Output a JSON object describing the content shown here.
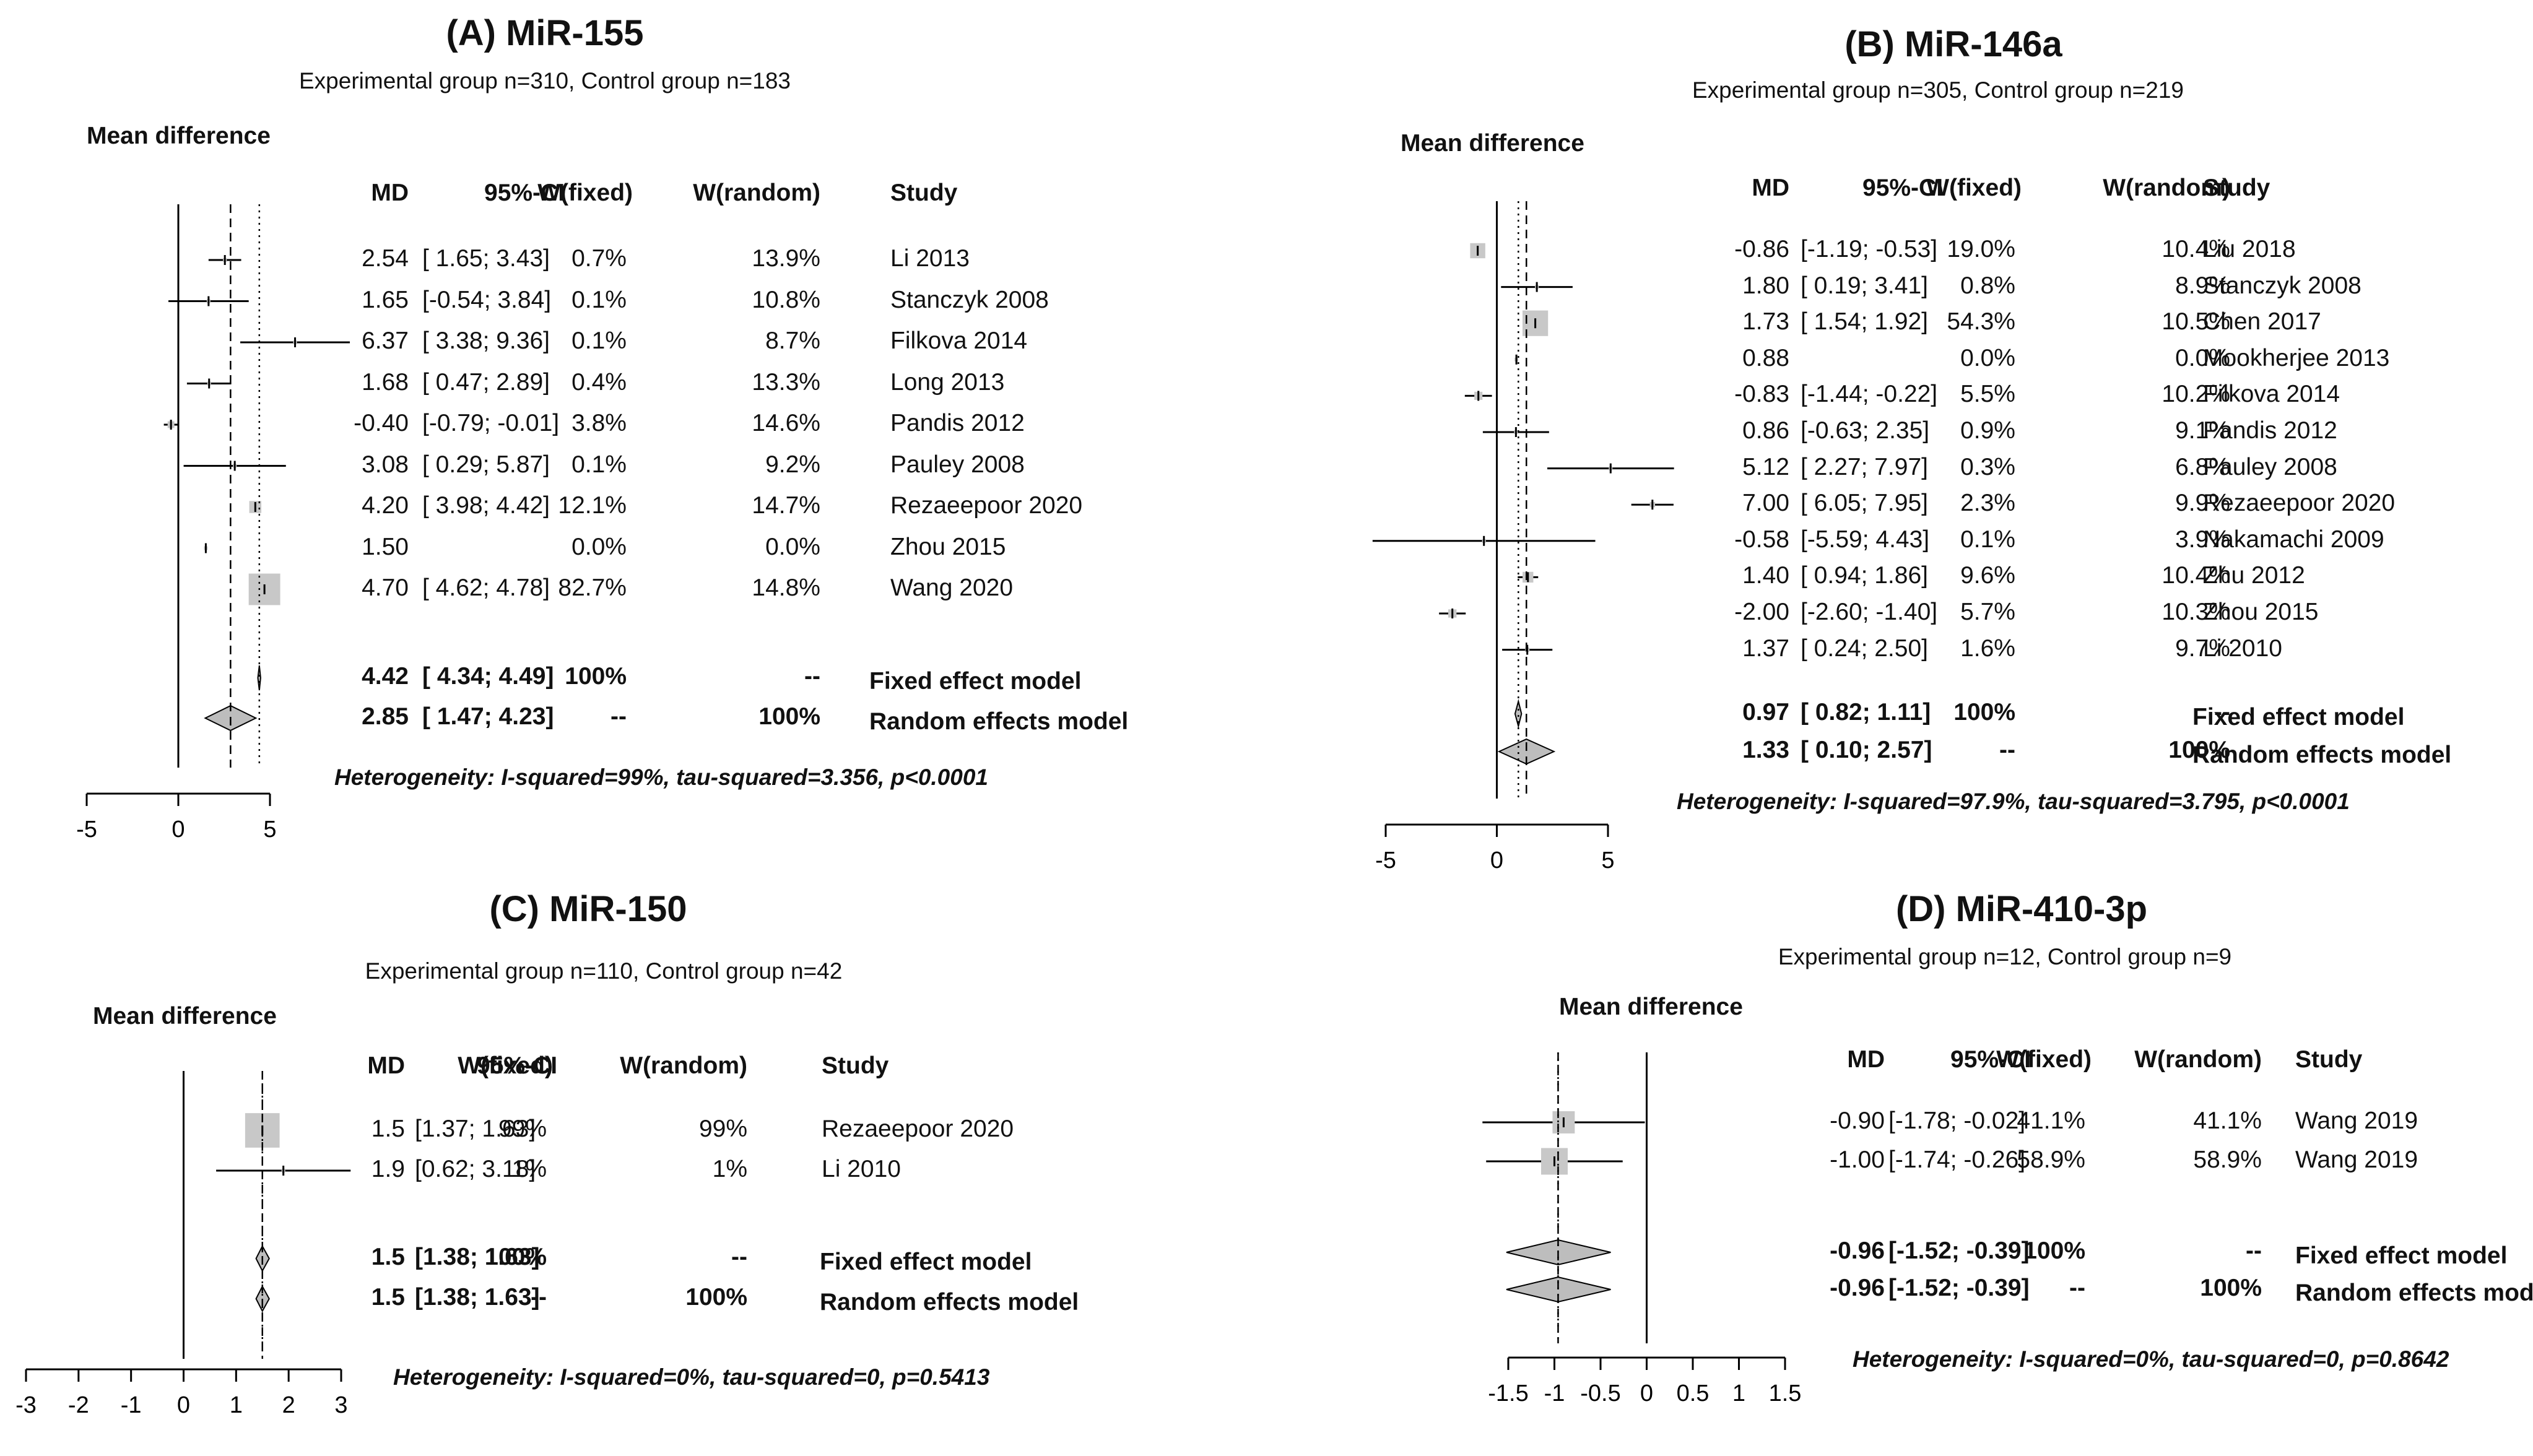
{
  "chart_data": [
    {
      "type": "forest",
      "title": "(A) MiR-155",
      "subtitle": "Experimental group n=310, Control group n=183",
      "ylabel": "Mean difference",
      "headers": [
        "MD",
        "95%-CI",
        "W(fixed)",
        "W(random)",
        "Study"
      ],
      "xlim": [
        -5,
        5
      ],
      "ticks": [
        "-5",
        "0",
        "5"
      ],
      "tick_values": [
        -5,
        0,
        5
      ],
      "fixed_estimate": 4.42,
      "random_estimate": 2.85,
      "studies": [
        {
          "md": 2.54,
          "lo": 1.65,
          "hi": 3.43,
          "md_text": "2.54",
          "ci_text": "[ 1.65; 3.43]",
          "wf": "0.7%",
          "wr": "13.9%",
          "study": "Li 2013"
        },
        {
          "md": 1.65,
          "lo": -0.54,
          "hi": 3.84,
          "md_text": "1.65",
          "ci_text": "[-0.54; 3.84]",
          "wf": "0.1%",
          "wr": "10.8%",
          "study": "Stanczyk 2008"
        },
        {
          "md": 6.37,
          "lo": 3.38,
          "hi": 9.36,
          "md_text": "6.37",
          "ci_text": "[ 3.38; 9.36]",
          "wf": "0.1%",
          "wr": "8.7%",
          "study": "Filkova 2014"
        },
        {
          "md": 1.68,
          "lo": 0.47,
          "hi": 2.89,
          "md_text": "1.68",
          "ci_text": "[ 0.47; 2.89]",
          "wf": "0.4%",
          "wr": "13.3%",
          "study": "Long 2013"
        },
        {
          "md": -0.4,
          "lo": -0.79,
          "hi": -0.01,
          "md_text": "-0.40",
          "ci_text": "[-0.79; -0.01]",
          "wf": "3.8%",
          "wr": "14.6%",
          "study": "Pandis 2012"
        },
        {
          "md": 3.08,
          "lo": 0.29,
          "hi": 5.87,
          "md_text": "3.08",
          "ci_text": "[ 0.29; 5.87]",
          "wf": "0.1%",
          "wr": "9.2%",
          "study": "Pauley 2008"
        },
        {
          "md": 4.2,
          "lo": 3.98,
          "hi": 4.42,
          "md_text": "4.20",
          "ci_text": "[ 3.98; 4.42]",
          "wf": "12.1%",
          "wr": "14.7%",
          "study": "Rezaeepoor 2020"
        },
        {
          "md": 1.5,
          "lo": 1.5,
          "hi": 1.5,
          "md_text": "1.50",
          "ci_text": "",
          "wf": "0.0%",
          "wr": "0.0%",
          "study": "Zhou 2015"
        },
        {
          "md": 4.7,
          "lo": 4.62,
          "hi": 4.78,
          "md_text": "4.70",
          "ci_text": "[ 4.62; 4.78]",
          "wf": "82.7%",
          "wr": "14.8%",
          "study": "Wang 2020"
        }
      ],
      "summaries": [
        {
          "md": 4.42,
          "lo": 4.34,
          "hi": 4.49,
          "md_text": "4.42",
          "ci_text": "[ 4.34; 4.49]",
          "wf": "100%",
          "wr": "--",
          "label": "Fixed effect model"
        },
        {
          "md": 2.85,
          "lo": 1.47,
          "hi": 4.23,
          "md_text": "2.85",
          "ci_text": "[ 1.47; 4.23]",
          "wf": "--",
          "wr": "100%",
          "label": "Random effects model"
        }
      ],
      "heterogeneity": "Heterogeneity: I-squared=99%, tau-squared=3.356, p<0.0001"
    },
    {
      "type": "forest",
      "title": "(B) MiR-146a",
      "subtitle": "Experimental group n=305, Control group n=219",
      "ylabel": "Mean difference",
      "headers": [
        "MD",
        "95%-CI",
        "W(fixed)",
        "W(random)",
        "Study"
      ],
      "xlim": [
        -5,
        5
      ],
      "ticks": [
        "-5",
        "0",
        "5"
      ],
      "tick_values": [
        -5,
        0,
        5
      ],
      "fixed_estimate": 0.97,
      "random_estimate": 1.33,
      "studies": [
        {
          "md": -0.86,
          "lo": -1.19,
          "hi": -0.53,
          "md_text": "-0.86",
          "ci_text": "[-1.19; -0.53]",
          "wf": "19.0%",
          "wr": "10.4%",
          "study": "Liu 2018"
        },
        {
          "md": 1.8,
          "lo": 0.19,
          "hi": 3.41,
          "md_text": "1.80",
          "ci_text": "[ 0.19; 3.41]",
          "wf": "0.8%",
          "wr": "8.9%",
          "study": "Stanczyk 2008"
        },
        {
          "md": 1.73,
          "lo": 1.54,
          "hi": 1.92,
          "md_text": "1.73",
          "ci_text": "[ 1.54; 1.92]",
          "wf": "54.3%",
          "wr": "10.5%",
          "study": "Chen 2017"
        },
        {
          "md": 0.88,
          "lo": 0.88,
          "hi": 0.88,
          "md_text": "0.88",
          "ci_text": "",
          "wf": "0.0%",
          "wr": "0.0%",
          "study": "Mookherjee 2013"
        },
        {
          "md": -0.83,
          "lo": -1.44,
          "hi": -0.22,
          "md_text": "-0.83",
          "ci_text": "[-1.44; -0.22]",
          "wf": "5.5%",
          "wr": "10.2%",
          "study": "Filkova 2014"
        },
        {
          "md": 0.86,
          "lo": -0.63,
          "hi": 2.35,
          "md_text": "0.86",
          "ci_text": "[-0.63; 2.35]",
          "wf": "0.9%",
          "wr": "9.1%",
          "study": "Pandis 2012"
        },
        {
          "md": 5.12,
          "lo": 2.27,
          "hi": 7.97,
          "md_text": "5.12",
          "ci_text": "[ 2.27; 7.97]",
          "wf": "0.3%",
          "wr": "6.8%",
          "study": "Pauley 2008"
        },
        {
          "md": 7.0,
          "lo": 6.05,
          "hi": 7.95,
          "md_text": "7.00",
          "ci_text": "[ 6.05; 7.95]",
          "wf": "2.3%",
          "wr": "9.9%",
          "study": "Rezaeepoor 2020"
        },
        {
          "md": -0.58,
          "lo": -5.59,
          "hi": 4.43,
          "md_text": "-0.58",
          "ci_text": "[-5.59; 4.43]",
          "wf": "0.1%",
          "wr": "3.9%",
          "study": "Nakamachi 2009"
        },
        {
          "md": 1.4,
          "lo": 0.94,
          "hi": 1.86,
          "md_text": "1.40",
          "ci_text": "[ 0.94; 1.86]",
          "wf": "9.6%",
          "wr": "10.4%",
          "study": "Zhu 2012"
        },
        {
          "md": -2.0,
          "lo": -2.6,
          "hi": -1.4,
          "md_text": "-2.00",
          "ci_text": "[-2.60; -1.40]",
          "wf": "5.7%",
          "wr": "10.3%",
          "study": "Zhou 2015"
        },
        {
          "md": 1.37,
          "lo": 0.24,
          "hi": 2.5,
          "md_text": "1.37",
          "ci_text": "[ 0.24; 2.50]",
          "wf": "1.6%",
          "wr": "9.7%",
          "study": "Li 2010"
        }
      ],
      "summaries": [
        {
          "md": 0.97,
          "lo": 0.82,
          "hi": 1.11,
          "md_text": "0.97",
          "ci_text": "[ 0.82; 1.11]",
          "wf": "100%",
          "wr": "--",
          "label": "Fixed effect model"
        },
        {
          "md": 1.33,
          "lo": 0.1,
          "hi": 2.57,
          "md_text": "1.33",
          "ci_text": "[ 0.10; 2.57]",
          "wf": "--",
          "wr": "100%",
          "label": "Random effects model"
        }
      ],
      "heterogeneity": "Heterogeneity: I-squared=97.9%, tau-squared=3.795, p<0.0001"
    },
    {
      "type": "forest",
      "title": "(C) MiR-150",
      "subtitle": "Experimental group n=110, Control group n=42",
      "ylabel": "Mean difference",
      "headers": [
        "MD",
        "95%-CI",
        "W(fixed)",
        "W(random)",
        "Study"
      ],
      "xlim": [
        -3,
        3
      ],
      "ticks": [
        "-3",
        "-2",
        "-1",
        "0",
        "1",
        "2",
        "3"
      ],
      "tick_values": [
        -3,
        -2,
        -1,
        0,
        1,
        2,
        3
      ],
      "fixed_estimate": 1.5,
      "random_estimate": 1.5,
      "studies": [
        {
          "md": 1.5,
          "lo": 1.37,
          "hi": 1.63,
          "md_text": "1.5",
          "ci_text": "[1.37; 1.63]",
          "wf": "99%",
          "wr": "99%",
          "study": "Rezaeepoor 2020"
        },
        {
          "md": 1.9,
          "lo": 0.62,
          "hi": 3.18,
          "md_text": "1.9",
          "ci_text": "[0.62; 3.18]",
          "wf": "1%",
          "wr": "1%",
          "study": "Li 2010"
        }
      ],
      "summaries": [
        {
          "md": 1.5,
          "lo": 1.38,
          "hi": 1.63,
          "md_text": "1.5",
          "ci_text": "[1.38; 1.63]",
          "wf": "100%",
          "wr": "--",
          "label": "Fixed effect model"
        },
        {
          "md": 1.5,
          "lo": 1.38,
          "hi": 1.63,
          "md_text": "1.5",
          "ci_text": "[1.38; 1.63]",
          "wf": "--",
          "wr": "100%",
          "label": "Random effects model"
        }
      ],
      "heterogeneity": "Heterogeneity: I-squared=0%, tau-squared=0, p=0.5413"
    },
    {
      "type": "forest",
      "title": "(D) MiR-410-3p",
      "subtitle": "Experimental group n=12, Control group n=9",
      "ylabel": "Mean difference",
      "headers": [
        "MD",
        "95%-CI",
        "W(fixed)",
        "W(random)",
        "Study"
      ],
      "xlim": [
        -1.5,
        1.5
      ],
      "ticks": [
        "-1.5",
        "-1",
        "-0.5",
        "0",
        "0.5",
        "1",
        "1.5"
      ],
      "tick_values": [
        -1.5,
        -1,
        -0.5,
        0,
        0.5,
        1,
        1.5
      ],
      "fixed_estimate": -0.96,
      "random_estimate": -0.96,
      "studies": [
        {
          "md": -0.9,
          "lo": -1.78,
          "hi": -0.02,
          "md_text": "-0.90",
          "ci_text": "[-1.78; -0.02]",
          "wf": "41.1%",
          "wr": "41.1%",
          "study": "Wang 2019"
        },
        {
          "md": -1.0,
          "lo": -1.74,
          "hi": -0.26,
          "md_text": "-1.00",
          "ci_text": "[-1.74; -0.26]",
          "wf": "58.9%",
          "wr": "58.9%",
          "study": "Wang 2019"
        }
      ],
      "summaries": [
        {
          "md": -0.96,
          "lo": -1.52,
          "hi": -0.39,
          "md_text": "-0.96",
          "ci_text": "[-1.52; -0.39]",
          "wf": "100%",
          "wr": "--",
          "label": "Fixed effect model"
        },
        {
          "md": -0.96,
          "lo": -1.52,
          "hi": -0.39,
          "md_text": "-0.96",
          "ci_text": "[-1.52; -0.39]",
          "wf": "--",
          "wr": "100%",
          "label": "Random effects model"
        }
      ],
      "heterogeneity": "Heterogeneity: I-squared=0%, tau-squared=0, p=0.8642"
    }
  ]
}
